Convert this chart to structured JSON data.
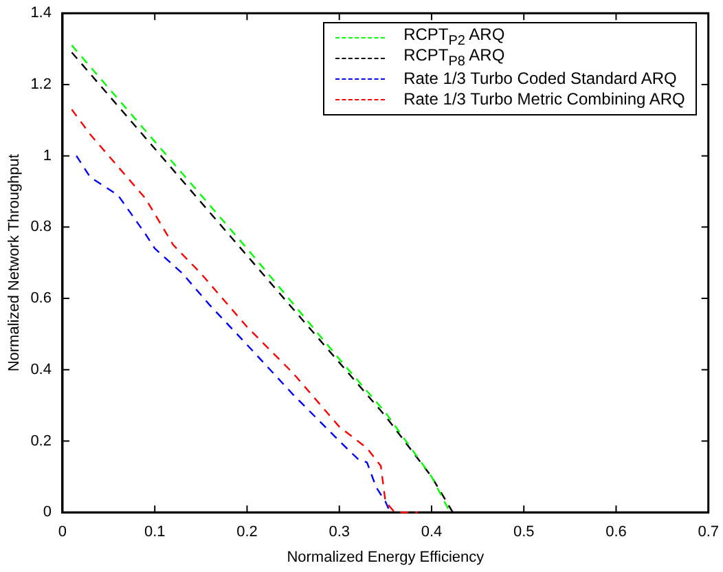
{
  "chart_data": {
    "type": "line",
    "xlabel": "Normalized Energy Efficiency",
    "ylabel": "Normalized Network Throughput",
    "xlim": [
      0,
      0.7
    ],
    "xticks": [
      0,
      0.1,
      0.2,
      0.3,
      0.4,
      0.5,
      0.6,
      0.7
    ],
    "ylim": [
      0,
      1.4
    ],
    "yticks": [
      0,
      0.2,
      0.4,
      0.6,
      0.8,
      1,
      1.2,
      1.4
    ],
    "grid": false,
    "legend": "top right",
    "marker": "none",
    "line_style": "dashed",
    "series": [
      {
        "name": "RCPT$_{P2}$ ARQ",
        "color": "#00ff00",
        "x": [
          0.01,
          0.1,
          0.2,
          0.3,
          0.35,
          0.4,
          0.42
        ],
        "values": [
          1.31,
          1.04,
          0.74,
          0.43,
          0.28,
          0.1,
          0
        ]
      },
      {
        "name": "RCPT$_{P8}$ ARQ",
        "color": "#000000",
        "x": [
          0.01,
          0.1,
          0.2,
          0.3,
          0.35,
          0.4,
          0.423
        ],
        "values": [
          1.29,
          1.02,
          0.72,
          0.42,
          0.27,
          0.1,
          0
        ]
      },
      {
        "name": "Rate 1/3 Turbo Coded Standard ARQ",
        "color": "#0000ff",
        "x": [
          0.015,
          0.03,
          0.06,
          0.09,
          0.1,
          0.13,
          0.16,
          0.2,
          0.25,
          0.3,
          0.32,
          0.33,
          0.34,
          0.35,
          0.355
        ],
        "values": [
          1.0,
          0.94,
          0.89,
          0.78,
          0.74,
          0.67,
          0.58,
          0.47,
          0.33,
          0.2,
          0.15,
          0.14,
          0.07,
          0.03,
          0
        ]
      },
      {
        "name": "Rate 1/3 Turbo Metric Combining ARQ",
        "color": "#ff0000",
        "x": [
          0.01,
          0.03,
          0.06,
          0.09,
          0.12,
          0.15,
          0.2,
          0.25,
          0.3,
          0.33,
          0.345,
          0.35,
          0.36,
          0.385
        ],
        "values": [
          1.13,
          1.06,
          0.97,
          0.88,
          0.75,
          0.67,
          0.52,
          0.39,
          0.24,
          0.18,
          0.13,
          0.03,
          0,
          0
        ]
      }
    ]
  }
}
